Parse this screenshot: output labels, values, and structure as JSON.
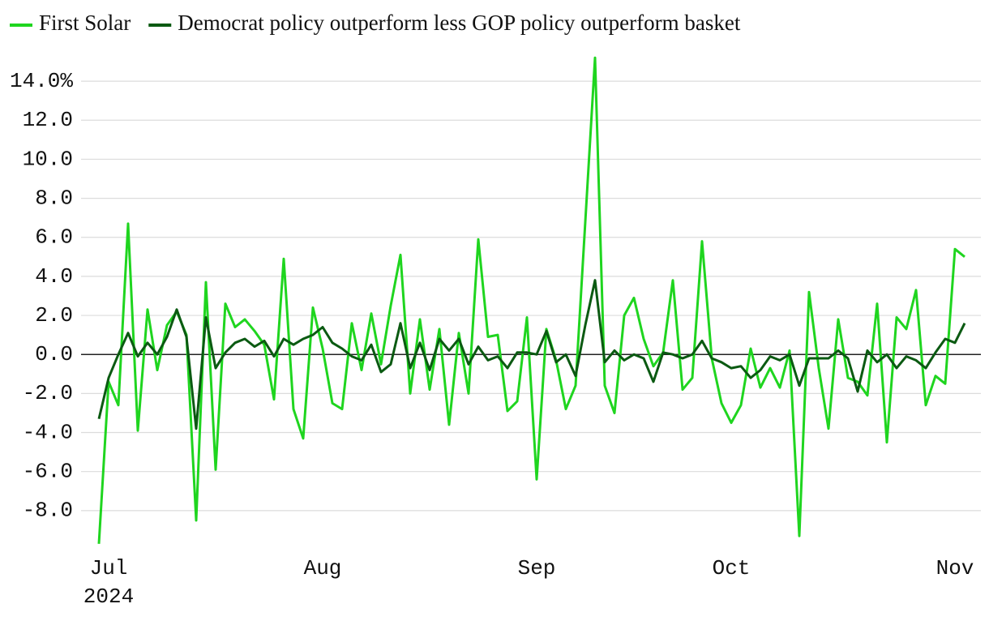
{
  "chart_data": {
    "type": "line",
    "categories": [
      null,
      "Jul",
      null,
      null,
      null,
      null,
      null,
      null,
      null,
      null,
      null,
      null,
      null,
      null,
      null,
      null,
      null,
      null,
      null,
      null,
      null,
      null,
      null,
      "Aug",
      null,
      null,
      null,
      null,
      null,
      null,
      null,
      null,
      null,
      null,
      null,
      null,
      null,
      null,
      null,
      null,
      null,
      null,
      null,
      null,
      null,
      "Sep",
      null,
      null,
      null,
      null,
      null,
      null,
      null,
      null,
      null,
      null,
      null,
      null,
      null,
      null,
      null,
      null,
      null,
      null,
      null,
      "Oct",
      null,
      null,
      null,
      null,
      null,
      null,
      null,
      null,
      null,
      null,
      null,
      null,
      null,
      null,
      null,
      null,
      null,
      null,
      null,
      null,
      null,
      null,
      "Nov",
      null
    ],
    "x_sublabel": "2024",
    "series": [
      {
        "name": "First Solar",
        "color": "#1fd51f",
        "values": [
          -9.7,
          -1.4,
          -2.6,
          6.7,
          -3.9,
          2.3,
          -0.8,
          1.5,
          2.2,
          1.0,
          -8.5,
          3.7,
          -5.9,
          2.6,
          1.4,
          1.8,
          1.2,
          0.5,
          -2.3,
          4.9,
          -2.8,
          -4.3,
          2.4,
          0.3,
          -2.5,
          -2.8,
          1.6,
          -0.8,
          2.1,
          -0.5,
          2.5,
          5.1,
          -2.0,
          1.8,
          -1.8,
          1.3,
          -3.6,
          1.1,
          -2.0,
          5.9,
          0.9,
          1.0,
          -2.9,
          -2.4,
          1.9,
          -6.4,
          1.3,
          -0.3,
          -2.8,
          -1.6,
          6.8,
          15.2,
          -1.6,
          -3.0,
          2.0,
          2.9,
          0.8,
          -0.6,
          0.1,
          3.8,
          -1.8,
          -1.2,
          5.8,
          -0.2,
          -2.5,
          -3.5,
          -2.6,
          0.3,
          -1.7,
          -0.7,
          -1.7,
          0.2,
          -9.3,
          3.2,
          -0.7,
          -3.8,
          1.8,
          -1.2,
          -1.4,
          -2.1,
          2.6,
          -4.5,
          1.9,
          1.3,
          3.3,
          -2.6,
          -1.1,
          -1.5,
          5.4,
          5.0
        ]
      },
      {
        "name": "Democrat policy outperform less GOP policy outperform basket",
        "color": "#0b5a12",
        "values": [
          -3.3,
          -1.2,
          0.0,
          1.1,
          -0.1,
          0.6,
          0.0,
          0.9,
          2.3,
          0.9,
          -3.8,
          1.9,
          -0.7,
          0.1,
          0.6,
          0.8,
          0.4,
          0.7,
          -0.1,
          0.8,
          0.5,
          0.8,
          1.0,
          1.4,
          0.6,
          0.3,
          -0.1,
          -0.3,
          0.5,
          -0.9,
          -0.5,
          1.6,
          -0.7,
          0.6,
          -0.8,
          0.8,
          0.2,
          0.8,
          -0.5,
          0.4,
          -0.3,
          -0.1,
          -0.7,
          0.1,
          0.1,
          0.0,
          1.2,
          -0.4,
          0.0,
          -1.1,
          1.5,
          3.8,
          -0.4,
          0.2,
          -0.3,
          0.0,
          -0.2,
          -1.4,
          0.1,
          0.0,
          -0.2,
          0.0,
          0.7,
          -0.2,
          -0.4,
          -0.7,
          -0.6,
          -1.2,
          -0.8,
          -0.1,
          -0.3,
          0.0,
          -1.6,
          -0.2,
          -0.2,
          -0.2,
          0.2,
          -0.2,
          -1.9,
          0.2,
          -0.4,
          0.0,
          -0.7,
          -0.1,
          -0.3,
          -0.7,
          0.1,
          0.8,
          0.6,
          1.6
        ]
      }
    ],
    "ylim": [
      -10,
      15.5
    ],
    "yticks": [
      {
        "value": -8,
        "label": "-8.0"
      },
      {
        "value": -6,
        "label": "-6.0"
      },
      {
        "value": -4,
        "label": "-4.0"
      },
      {
        "value": -2,
        "label": "-2.0"
      },
      {
        "value": 0,
        "label": "0.0"
      },
      {
        "value": 2,
        "label": "2.0"
      },
      {
        "value": 4,
        "label": "4.0"
      },
      {
        "value": 6,
        "label": "6.0"
      },
      {
        "value": 8,
        "label": "8.0"
      },
      {
        "value": 10,
        "label": "10.0"
      },
      {
        "value": 12,
        "label": "12.0"
      },
      {
        "value": 14,
        "label": "14.0%"
      }
    ],
    "grid": true,
    "legend": "top-left"
  }
}
